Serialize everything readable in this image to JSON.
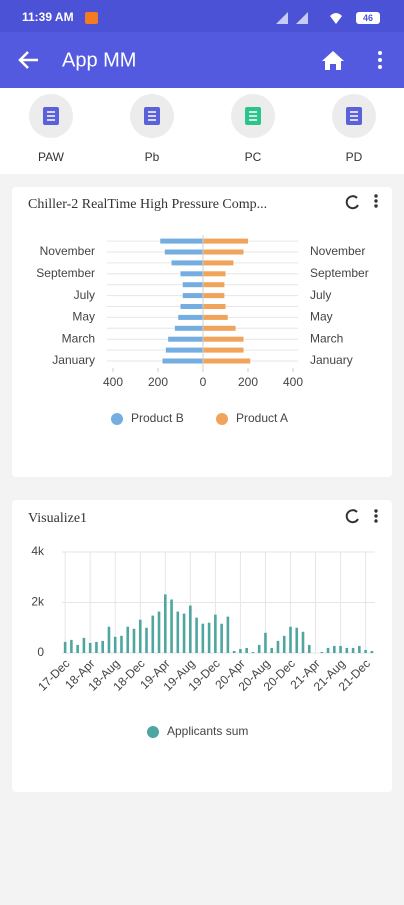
{
  "status_bar": {
    "time": "11:39 AM",
    "battery": "46"
  },
  "app_bar": {
    "title": "App MM"
  },
  "tabs": [
    "PAW",
    "Pb",
    "PC",
    "PD"
  ],
  "chart_data": [
    {
      "type": "hbar",
      "title": "Chiller-2 RealTime High Pressure Comp...",
      "categories": [
        "January",
        null,
        "March",
        null,
        "May",
        null,
        "July",
        null,
        "September",
        null,
        "November",
        null
      ],
      "series": [
        {
          "name": "Product B",
          "color": "#74ade0",
          "values": [
            -180,
            -165,
            -155,
            -125,
            -110,
            -100,
            -90,
            -90,
            -100,
            -140,
            -170,
            -190
          ]
        },
        {
          "name": "Product A",
          "color": "#f0a35a",
          "values": [
            210,
            180,
            180,
            145,
            110,
            100,
            95,
            95,
            100,
            135,
            180,
            200
          ]
        }
      ],
      "xlim": [
        -400,
        400
      ],
      "xticks": [
        {
          "value": -400,
          "label": "400"
        },
        {
          "value": -200,
          "label": "200"
        },
        0,
        200,
        400
      ],
      "grid": true
    },
    {
      "type": "bar",
      "title": "Visualize1",
      "categories": [
        "17-Dec",
        null,
        null,
        null,
        "18-Apr",
        null,
        null,
        null,
        "18-Aug",
        null,
        null,
        null,
        "18-Dec",
        null,
        null,
        null,
        "19-Apr",
        null,
        null,
        null,
        "19-Aug",
        null,
        null,
        null,
        "19-Dec",
        null,
        null,
        null,
        "20-Apr",
        null,
        null,
        null,
        "20-Aug",
        null,
        null,
        null,
        "20-Dec",
        null,
        null,
        null,
        "21-Apr",
        null,
        null,
        null,
        "21-Aug",
        null,
        null,
        null,
        "21-Dec",
        null
      ],
      "series": [
        {
          "name": "Applicants sum",
          "color": "#4fa6a1",
          "values": [
            440,
            520,
            320,
            600,
            400,
            440,
            480,
            1040,
            640,
            680,
            1040,
            960,
            1320,
            1000,
            1480,
            1640,
            2320,
            2120,
            1640,
            1560,
            1880,
            1400,
            1160,
            1200,
            1520,
            1160,
            1440,
            80,
            160,
            200,
            40,
            320,
            800,
            200,
            480,
            680,
            1040,
            1000,
            840,
            320,
            0,
            40,
            200,
            280,
            280,
            200,
            200,
            280,
            120,
            80
          ]
        }
      ],
      "ylim": [
        0,
        4000
      ],
      "yticks": [
        0,
        {
          "value": 2000,
          "label": "2k"
        },
        {
          "value": 4000,
          "label": "4k"
        }
      ],
      "grid": true
    }
  ]
}
